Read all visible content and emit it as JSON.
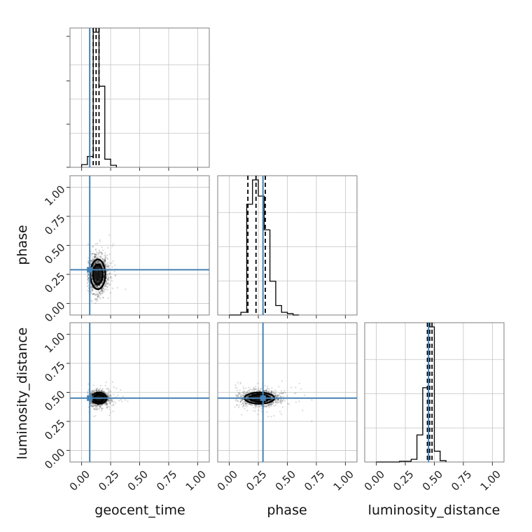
{
  "chart_data": {
    "type": "corner",
    "parameters": [
      "geocent_time",
      "phase",
      "luminosity_distance"
    ],
    "axis_labels": {
      "x": [
        "geocent_time",
        "phase",
        "luminosity_distance"
      ],
      "y": [
        "phase",
        "luminosity_distance"
      ]
    },
    "tick_values": [
      0.0,
      0.25,
      0.5,
      0.75,
      1.0
    ],
    "tick_labels": [
      "0.00",
      "0.25",
      "0.50",
      "0.75",
      "1.00"
    ],
    "range": [
      -0.1,
      1.1
    ],
    "grid": true,
    "truth": {
      "geocent_time": 0.07,
      "phase": 0.29,
      "luminosity_distance": 0.45
    },
    "quantiles": {
      "geocent_time": [
        0.1,
        0.125,
        0.15
      ],
      "phase": [
        0.16,
        0.23,
        0.31
      ],
      "luminosity_distance": [
        0.44,
        0.46,
        0.48
      ]
    },
    "histograms": {
      "geocent_time": {
        "edges": [
          0.0,
          0.05,
          0.1,
          0.15,
          0.2,
          0.25,
          0.3
        ],
        "counts": [
          0.02,
          0.08,
          1.0,
          0.6,
          0.06,
          0.015
        ]
      },
      "phase": {
        "edges": [
          0.0,
          0.05,
          0.1,
          0.15,
          0.2,
          0.25,
          0.3,
          0.35,
          0.4,
          0.45,
          0.5,
          0.55,
          0.6
        ],
        "counts": [
          0.0,
          0.0,
          0.02,
          0.82,
          1.0,
          0.88,
          0.63,
          0.25,
          0.07,
          0.02,
          0.01,
          0.0
        ]
      },
      "luminosity_distance": {
        "edges": [
          0.0,
          0.1,
          0.2,
          0.3,
          0.35,
          0.4,
          0.45,
          0.5,
          0.55,
          0.6
        ],
        "counts": [
          0.0,
          0.0,
          0.005,
          0.02,
          0.2,
          0.55,
          1.0,
          0.08,
          0.01
        ]
      }
    },
    "scatter_clouds": {
      "phase_vs_geocent_time": {
        "center": [
          0.14,
          0.25
        ],
        "spread": [
          0.04,
          0.08
        ],
        "x_range": [
          0.05,
          0.45
        ],
        "y_range": [
          0.0,
          0.65
        ]
      },
      "luminosity_distance_vs_geocent_time": {
        "center": [
          0.15,
          0.45
        ],
        "spread": [
          0.04,
          0.03
        ],
        "x_range": [
          0.05,
          0.45
        ],
        "y_range": [
          0.05,
          0.62
        ]
      },
      "luminosity_distance_vs_phase": {
        "center": [
          0.26,
          0.45
        ],
        "spread": [
          0.08,
          0.03
        ],
        "x_range": [
          0.05,
          0.75
        ],
        "y_range": [
          0.0,
          0.62
        ]
      }
    }
  }
}
